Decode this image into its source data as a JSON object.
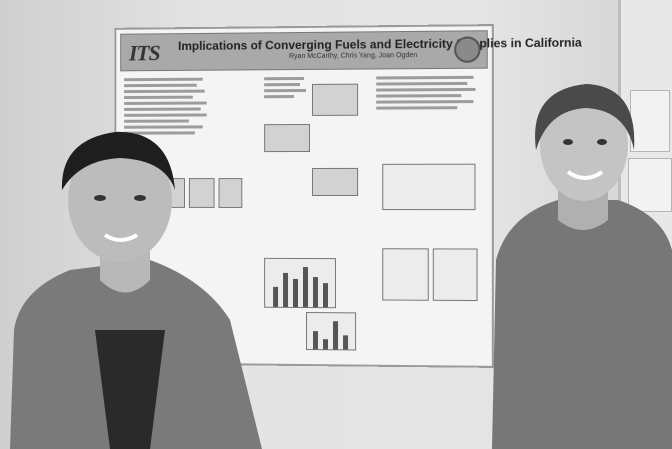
{
  "poster": {
    "logo": "ITS",
    "title": "Implications of Converging Fuels and Electricity Supplies in California",
    "authors": "Ryan McCarthy, Chris Yang, Joan Ogden"
  },
  "scene": {
    "people": [
      "left-man",
      "right-man"
    ]
  }
}
